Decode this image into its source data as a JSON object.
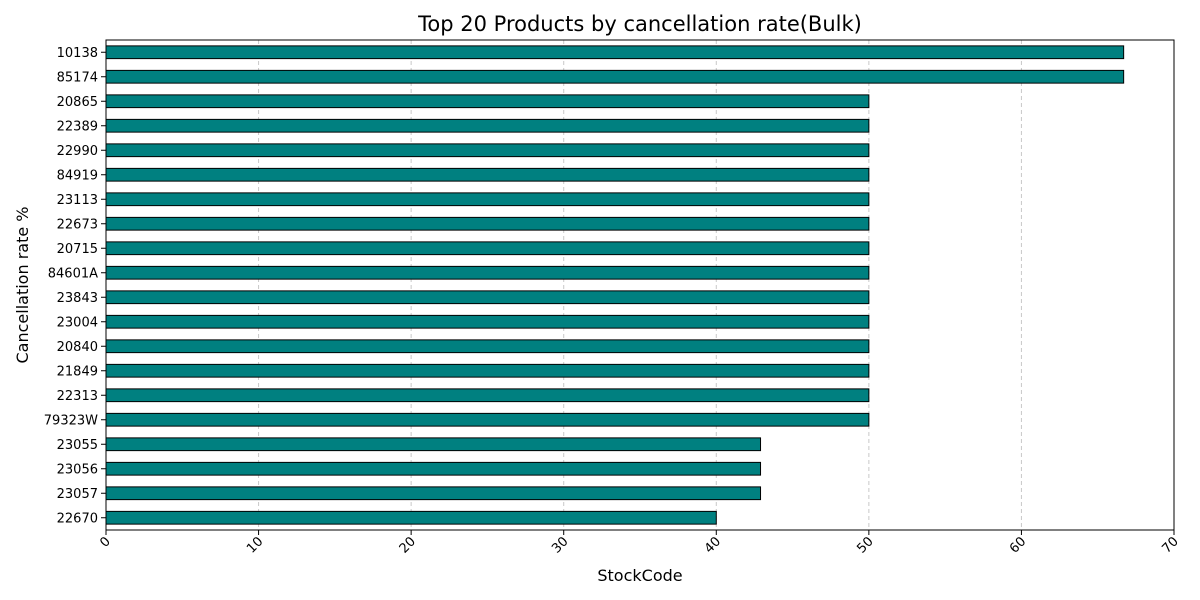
{
  "chart_data": {
    "type": "bar",
    "orientation": "horizontal",
    "title": "Top 20 Products by cancellation rate(Bulk)",
    "xlabel": "StockCode",
    "ylabel": "Cancellation rate %",
    "xlim": [
      0,
      70
    ],
    "xticks": [
      "0",
      "10",
      "20",
      "30",
      "40",
      "50",
      "60",
      "70"
    ],
    "grid": "x-dashed",
    "bar_color": "#008080",
    "edge_color": "#000000",
    "categories": [
      "10138",
      "85174",
      "20865",
      "22389",
      "22990",
      "84919",
      "23113",
      "22673",
      "20715",
      "84601A",
      "23843",
      "23004",
      "20840",
      "21849",
      "22313",
      "79323W",
      "23055",
      "23056",
      "23057",
      "22670"
    ],
    "values": [
      66.7,
      66.7,
      50,
      50,
      50,
      50,
      50,
      50,
      50,
      50,
      50,
      50,
      50,
      50,
      50,
      50,
      42.9,
      42.9,
      42.9,
      40
    ]
  }
}
